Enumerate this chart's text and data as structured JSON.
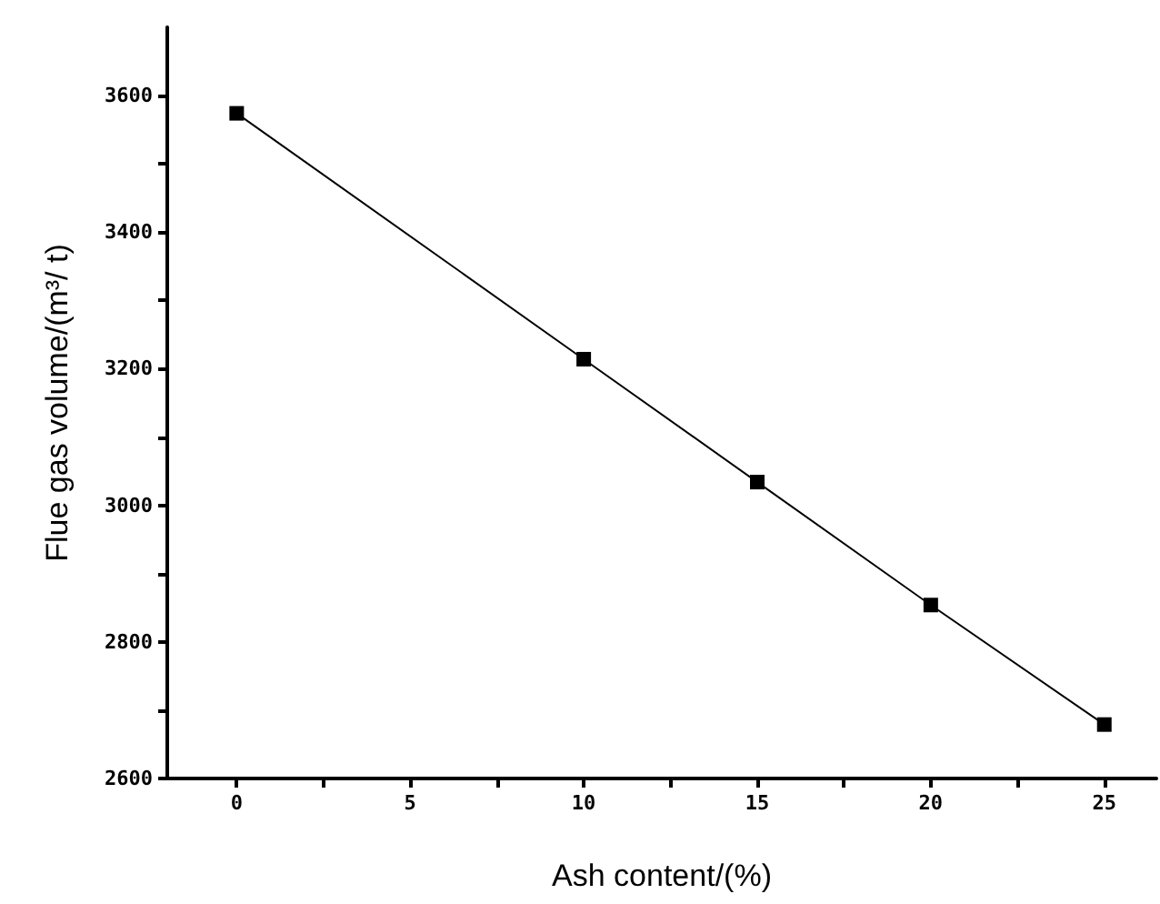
{
  "chart_data": {
    "type": "line",
    "xlabel": "Ash content/(%)",
    "ylabel": "Flue gas volume/(m³/ t)",
    "x": [
      0,
      10,
      15,
      20,
      25
    ],
    "series": [
      {
        "color": "#000000",
        "values": [
          3574,
          3214,
          3034,
          2854,
          2679
        ]
      }
    ],
    "xlim": [
      -2,
      26.5
    ],
    "xticks": [
      0,
      {
        "value": 2.5,
        "label": null
      },
      5,
      {
        "value": 7.5,
        "label": null
      },
      10,
      {
        "value": 12.5,
        "label": null
      },
      15,
      {
        "value": 17.5,
        "label": null
      },
      20,
      {
        "value": 22.5,
        "label": null
      },
      25
    ],
    "ylim": [
      2600,
      3700
    ],
    "yticks": [
      2600,
      {
        "value": 2700,
        "label": null
      },
      2800,
      {
        "value": 2900,
        "label": null
      },
      3000,
      {
        "value": 3100,
        "label": null
      },
      3200,
      {
        "value": 3300,
        "label": null
      },
      3400,
      {
        "value": 3500,
        "label": null
      },
      3600
    ],
    "marker": "square",
    "line_style": "solid"
  }
}
